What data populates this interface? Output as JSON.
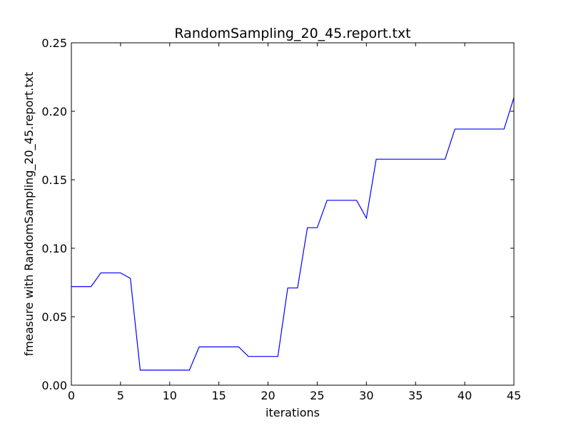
{
  "chart_data": {
    "type": "line",
    "title": "RandomSampling_20_45.report.txt",
    "xlabel": "iterations",
    "ylabel": "fmeasure with RandomSampling_20_45.report.txt",
    "xlim": [
      0,
      45
    ],
    "ylim": [
      0,
      0.25
    ],
    "x_ticks": [
      {
        "value": 0,
        "label": "0"
      },
      {
        "value": 5,
        "label": "5"
      },
      {
        "value": 10,
        "label": "10"
      },
      {
        "value": 15,
        "label": "15"
      },
      {
        "value": 20,
        "label": "20"
      },
      {
        "value": 25,
        "label": "25"
      },
      {
        "value": 30,
        "label": "30"
      },
      {
        "value": 35,
        "label": "35"
      },
      {
        "value": 40,
        "label": "40"
      },
      {
        "value": 45,
        "label": "45"
      }
    ],
    "y_ticks": [
      {
        "value": 0,
        "label": "0.00"
      },
      {
        "value": 0.05,
        "label": "0.05"
      },
      {
        "value": 0.1,
        "label": "0.10"
      },
      {
        "value": 0.15,
        "label": "0.15"
      },
      {
        "value": 0.2,
        "label": "0.20"
      },
      {
        "value": 0.25,
        "label": "0.25"
      }
    ],
    "grid": false,
    "series": [
      {
        "color": "#0000ff",
        "x": [
          0,
          1,
          2,
          3,
          4,
          5,
          6,
          7,
          8,
          9,
          10,
          11,
          12,
          13,
          14,
          15,
          16,
          17,
          18,
          19,
          20,
          21,
          22,
          23,
          24,
          25,
          26,
          27,
          28,
          29,
          30,
          31,
          32,
          33,
          34,
          35,
          36,
          37,
          38,
          39,
          40,
          41,
          42,
          43,
          44,
          45
        ],
        "y": [
          0.072,
          0.072,
          0.072,
          0.082,
          0.082,
          0.082,
          0.078,
          0.011,
          0.011,
          0.011,
          0.011,
          0.011,
          0.011,
          0.028,
          0.028,
          0.028,
          0.028,
          0.028,
          0.021,
          0.021,
          0.021,
          0.021,
          0.071,
          0.071,
          0.115,
          0.115,
          0.135,
          0.135,
          0.135,
          0.135,
          0.122,
          0.165,
          0.165,
          0.165,
          0.165,
          0.165,
          0.165,
          0.165,
          0.165,
          0.187,
          0.187,
          0.187,
          0.187,
          0.187,
          0.187,
          0.21
        ]
      }
    ]
  }
}
